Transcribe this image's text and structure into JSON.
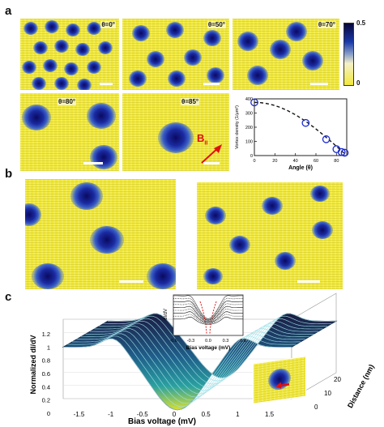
{
  "panels": {
    "a": "a",
    "b": "b",
    "c": "c"
  },
  "panel_a": {
    "images": [
      {
        "angle": "θ=0°"
      },
      {
        "angle": "θ=50°"
      },
      {
        "angle": "θ=70°"
      },
      {
        "angle": "θ=80°"
      },
      {
        "angle": "θ=85°"
      }
    ],
    "field_label": "B",
    "field_subscript": "II",
    "colorbar": {
      "max": "0.5",
      "min": "0"
    }
  },
  "chart_data": [
    {
      "type": "scatter",
      "xlabel": "Angle (θ)",
      "ylabel": "Vortex density (1/μm²)",
      "xlim": [
        0,
        90
      ],
      "ylim": [
        0,
        400
      ],
      "x_ticks": [
        "0",
        "20",
        "40",
        "60",
        "80"
      ],
      "y_ticks": [
        "0",
        "100",
        "200",
        "300",
        "400"
      ],
      "points": [
        {
          "x": 0,
          "y": 375
        },
        {
          "x": 50,
          "y": 230
        },
        {
          "x": 70,
          "y": 115
        },
        {
          "x": 80,
          "y": 45
        },
        {
          "x": 85,
          "y": 25
        },
        {
          "x": 88,
          "y": 20
        }
      ],
      "fit_curve": {
        "style": "dashed",
        "function": "cos"
      }
    },
    {
      "type": "line",
      "inset": true,
      "xlabel": "Bias voltage (mV)",
      "ylabel": "dI/dV",
      "x_ticks": [
        "-0.6",
        "-0.3",
        "0.0",
        "0.3",
        "0.6"
      ],
      "xlim": [
        -0.6,
        0.6
      ]
    },
    {
      "type": "area",
      "xlabel": "Bias voltage (mV)",
      "ylabel": "Normalized dI/dV",
      "zlabel": "Distance (nm)",
      "x_ticks": [
        "-1.5",
        "-1",
        "-0.5",
        "0",
        "0.5",
        "1",
        "1.5"
      ],
      "y_ticks": [
        "0",
        "0.2",
        "0.4",
        "0.6",
        "0.8",
        "1",
        "1.2"
      ],
      "z_ticks": [
        "0",
        "10",
        "20"
      ],
      "xlim": [
        -1.8,
        1.8
      ],
      "ylim": [
        0,
        1.2
      ]
    }
  ]
}
